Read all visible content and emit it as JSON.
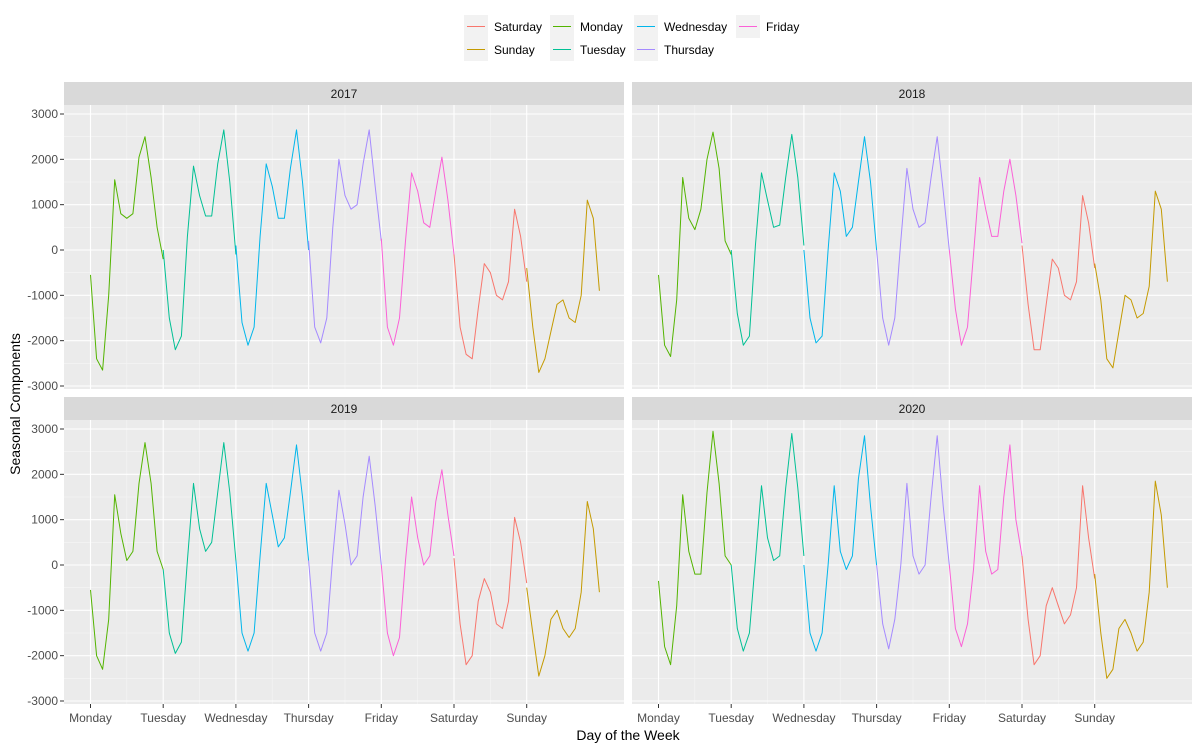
{
  "chart_data": {
    "type": "line",
    "xlabel": "Day of the Week",
    "ylabel": "Seasonal Components",
    "ylim": [
      -3000,
      3000
    ],
    "y_ticks": [
      -3000,
      -2000,
      -1000,
      0,
      1000,
      2000,
      3000
    ],
    "x_ticks": [
      "Monday",
      "Tuesday",
      "Wednesday",
      "Thursday",
      "Friday",
      "Saturday",
      "Sunday"
    ],
    "grid": true,
    "legend_position": "top",
    "legend": [
      {
        "name": "Saturday",
        "color": "#F8766D"
      },
      {
        "name": "Sunday",
        "color": "#C49A00"
      },
      {
        "name": "Monday",
        "color": "#53B400"
      },
      {
        "name": "Tuesday",
        "color": "#00C094"
      },
      {
        "name": "Wednesday",
        "color": "#00B6EB"
      },
      {
        "name": "Thursday",
        "color": "#A58AFF"
      },
      {
        "name": "Friday",
        "color": "#FB61D7"
      }
    ],
    "day_order": [
      "Monday",
      "Tuesday",
      "Wednesday",
      "Thursday",
      "Friday",
      "Saturday",
      "Sunday"
    ],
    "hour_x": [
      0,
      2,
      4,
      6,
      8,
      10,
      12,
      14,
      16,
      18,
      20,
      22,
      24
    ],
    "panels": [
      {
        "title": "2017",
        "days": {
          "Monday": [
            -550,
            -2400,
            -2650,
            -1000,
            1550,
            800,
            700,
            800,
            2050,
            2500,
            1600,
            500,
            -200
          ],
          "Tuesday": [
            0,
            -1500,
            -2200,
            -1900,
            300,
            1850,
            1200,
            750,
            750,
            1900,
            2650,
            1500,
            -100
          ],
          "Wednesday": [
            100,
            -1600,
            -2100,
            -1700,
            300,
            1900,
            1400,
            700,
            700,
            1800,
            2650,
            1500,
            0
          ],
          "Thursday": [
            200,
            -1700,
            -2050,
            -1500,
            500,
            2000,
            1200,
            900,
            1000,
            1900,
            2650,
            1400,
            200
          ],
          "Friday": [
            250,
            -1700,
            -2100,
            -1500,
            200,
            1700,
            1300,
            600,
            500,
            1300,
            2050,
            1100,
            -100
          ],
          "Saturday": [
            -100,
            -1700,
            -2300,
            -2400,
            -1300,
            -300,
            -500,
            -1000,
            -1100,
            -700,
            900,
            300,
            -700
          ],
          "Sunday": [
            -400,
            -1700,
            -2700,
            -2400,
            -1800,
            -1200,
            -1100,
            -1500,
            -1600,
            -1000,
            1100,
            700,
            -900
          ]
        }
      },
      {
        "title": "2018",
        "days": {
          "Monday": [
            -550,
            -2100,
            -2350,
            -1100,
            1600,
            700,
            450,
            900,
            2000,
            2600,
            1800,
            200,
            -100
          ],
          "Tuesday": [
            0,
            -1400,
            -2100,
            -1900,
            100,
            1700,
            1100,
            500,
            550,
            1600,
            2550,
            1600,
            100
          ],
          "Wednesday": [
            0,
            -1500,
            -2050,
            -1900,
            0,
            1700,
            1300,
            300,
            500,
            1500,
            2500,
            1500,
            0
          ],
          "Thursday": [
            0,
            -1500,
            -2100,
            -1500,
            200,
            1800,
            900,
            500,
            600,
            1600,
            2500,
            1300,
            0
          ],
          "Friday": [
            0,
            -1300,
            -2100,
            -1700,
            -100,
            1600,
            900,
            300,
            300,
            1300,
            2000,
            1200,
            150
          ],
          "Saturday": [
            100,
            -1200,
            -2200,
            -2200,
            -1200,
            -200,
            -400,
            -1000,
            -1100,
            -700,
            1200,
            600,
            -400
          ],
          "Sunday": [
            -300,
            -1100,
            -2400,
            -2600,
            -1800,
            -1000,
            -1100,
            -1500,
            -1400,
            -800,
            1300,
            900,
            -700
          ]
        }
      },
      {
        "title": "2019",
        "days": {
          "Monday": [
            -550,
            -2000,
            -2300,
            -1200,
            1550,
            700,
            100,
            300,
            1800,
            2700,
            1800,
            300,
            -100
          ],
          "Tuesday": [
            -100,
            -1500,
            -1950,
            -1700,
            100,
            1800,
            800,
            300,
            500,
            1600,
            2700,
            1600,
            100
          ],
          "Wednesday": [
            100,
            -1500,
            -1900,
            -1500,
            200,
            1800,
            1100,
            400,
            600,
            1600,
            2650,
            1500,
            100
          ],
          "Thursday": [
            100,
            -1500,
            -1900,
            -1500,
            200,
            1650,
            900,
            0,
            200,
            1500,
            2400,
            1300,
            0
          ],
          "Friday": [
            0,
            -1500,
            -2000,
            -1600,
            100,
            1500,
            600,
            0,
            200,
            1400,
            2100,
            1100,
            200
          ],
          "Saturday": [
            150,
            -1300,
            -2200,
            -2000,
            -800,
            -300,
            -600,
            -1300,
            -1400,
            -800,
            1050,
            500,
            -400
          ],
          "Sunday": [
            -500,
            -1500,
            -2450,
            -2000,
            -1200,
            -1000,
            -1400,
            -1600,
            -1400,
            -600,
            1400,
            800,
            -600
          ]
        }
      },
      {
        "title": "2020",
        "days": {
          "Monday": [
            -350,
            -1800,
            -2200,
            -900,
            1550,
            300,
            -200,
            -200,
            1600,
            2950,
            1800,
            200,
            0
          ],
          "Tuesday": [
            0,
            -1400,
            -1900,
            -1500,
            100,
            1750,
            600,
            100,
            200,
            1700,
            2900,
            1700,
            200
          ],
          "Wednesday": [
            0,
            -1500,
            -1900,
            -1500,
            0,
            1750,
            300,
            -100,
            200,
            1900,
            2850,
            1300,
            0
          ],
          "Thursday": [
            0,
            -1300,
            -1850,
            -1200,
            0,
            1800,
            200,
            -200,
            0,
            1500,
            2850,
            1300,
            0
          ],
          "Friday": [
            0,
            -1400,
            -1800,
            -1300,
            -100,
            1750,
            300,
            -200,
            -100,
            1500,
            2650,
            1000,
            200
          ],
          "Saturday": [
            200,
            -1200,
            -2200,
            -2000,
            -900,
            -500,
            -900,
            -1300,
            -1100,
            -500,
            1750,
            600,
            -300
          ],
          "Sunday": [
            -200,
            -1500,
            -2500,
            -2300,
            -1400,
            -1200,
            -1500,
            -1900,
            -1700,
            -600,
            1850,
            1100,
            -500
          ]
        }
      }
    ]
  }
}
